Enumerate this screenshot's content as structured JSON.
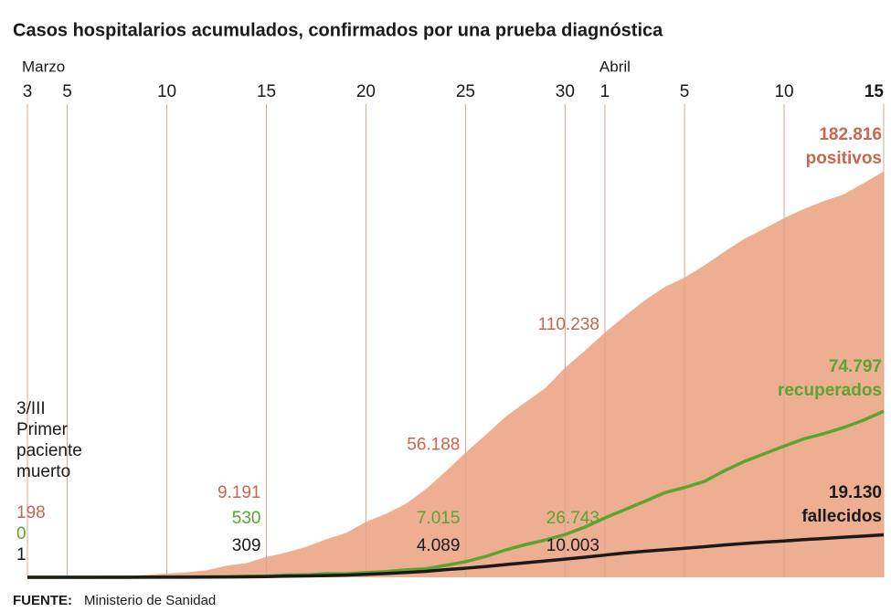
{
  "chart_data": {
    "type": "area",
    "title": "Casos hospitalarios acumulados, confirmados por una prueba diagnóstica",
    "source_label": "FUENTE:",
    "source": "Ministerio de Sanidad",
    "months": [
      "Marzo",
      "Abril"
    ],
    "categories": [
      "3",
      null,
      "5",
      null,
      null,
      null,
      null,
      "10",
      null,
      null,
      null,
      null,
      "15",
      null,
      null,
      null,
      null,
      "20",
      null,
      null,
      null,
      null,
      "25",
      null,
      null,
      null,
      null,
      "30",
      null,
      "1",
      null,
      null,
      null,
      "5",
      null,
      null,
      null,
      null,
      "10",
      null,
      null,
      null,
      null,
      "15"
    ],
    "annotation": [
      "3/III",
      "Primer",
      "paciente",
      "muerto"
    ],
    "ylim": [
      0,
      200000
    ],
    "grid": true,
    "series": [
      {
        "name": "positivos",
        "color": "#eeae92",
        "label_color": "#c8664e",
        "values": [
          198,
          222,
          259,
          400,
          500,
          673,
          1073,
          1695,
          2277,
          3146,
          5232,
          6391,
          9191,
          11178,
          13716,
          17147,
          19980,
          24926,
          28572,
          33089,
          39673,
          47610,
          56188,
          64059,
          72248,
          78797,
          85195,
          94417,
          102136,
          110238,
          117710,
          124736,
          130759,
          135032,
          140510,
          146690,
          152446,
          157022,
          161852,
          166019,
          169496,
          172541,
          177633,
          182816
        ],
        "value_labels": [
          "198",
          null,
          null,
          null,
          null,
          null,
          null,
          null,
          null,
          null,
          null,
          null,
          "9.191",
          null,
          null,
          null,
          null,
          null,
          null,
          null,
          null,
          null,
          "56.188",
          null,
          null,
          null,
          null,
          null,
          null,
          "110.238",
          null,
          null,
          null,
          null,
          null,
          null,
          null,
          null,
          null,
          null,
          null,
          null,
          null,
          "182.816"
        ]
      },
      {
        "name": "recuperados",
        "color": "#5aa530",
        "label_color": "#5aa530",
        "values": [
          0,
          0,
          2,
          2,
          30,
          30,
          32,
          135,
          183,
          189,
          193,
          517,
          530,
          1028,
          1107,
          1585,
          1588,
          2125,
          2575,
          3355,
          3794,
          5367,
          7015,
          9357,
          12285,
          14709,
          16780,
          19259,
          22647,
          26743,
          30513,
          34219,
          38080,
          40437,
          43208,
          48021,
          52165,
          55668,
          59109,
          62391,
          64727,
          67504,
          70853,
          74797
        ],
        "value_labels": [
          "0",
          null,
          null,
          null,
          null,
          null,
          null,
          null,
          null,
          null,
          null,
          null,
          "530",
          null,
          null,
          null,
          null,
          null,
          null,
          null,
          null,
          null,
          "7.015",
          null,
          null,
          null,
          null,
          null,
          null,
          "26.743",
          null,
          null,
          null,
          null,
          null,
          null,
          null,
          null,
          null,
          null,
          null,
          null,
          null,
          "74.797"
        ]
      },
      {
        "name": "fallecidos",
        "color": "#1a1a1a",
        "label_color": "#1a1a1a",
        "values": [
          1,
          2,
          3,
          5,
          10,
          17,
          28,
          35,
          54,
          84,
          133,
          195,
          309,
          491,
          598,
          767,
          1002,
          1326,
          1720,
          2182,
          2696,
          3434,
          4089,
          4858,
          5690,
          6528,
          7340,
          8189,
          9053,
          10003,
          10935,
          11744,
          12418,
          13055,
          13798,
          14555,
          15238,
          15843,
          16353,
          16972,
          17489,
          18056,
          18579,
          19130
        ],
        "value_labels": [
          "1",
          null,
          null,
          null,
          null,
          null,
          null,
          null,
          null,
          null,
          null,
          null,
          "309",
          null,
          null,
          null,
          null,
          null,
          null,
          null,
          null,
          null,
          "4.089",
          null,
          null,
          null,
          null,
          null,
          null,
          "10.003",
          null,
          null,
          null,
          null,
          null,
          null,
          null,
          null,
          null,
          null,
          null,
          null,
          null,
          "19.130"
        ]
      }
    ]
  }
}
